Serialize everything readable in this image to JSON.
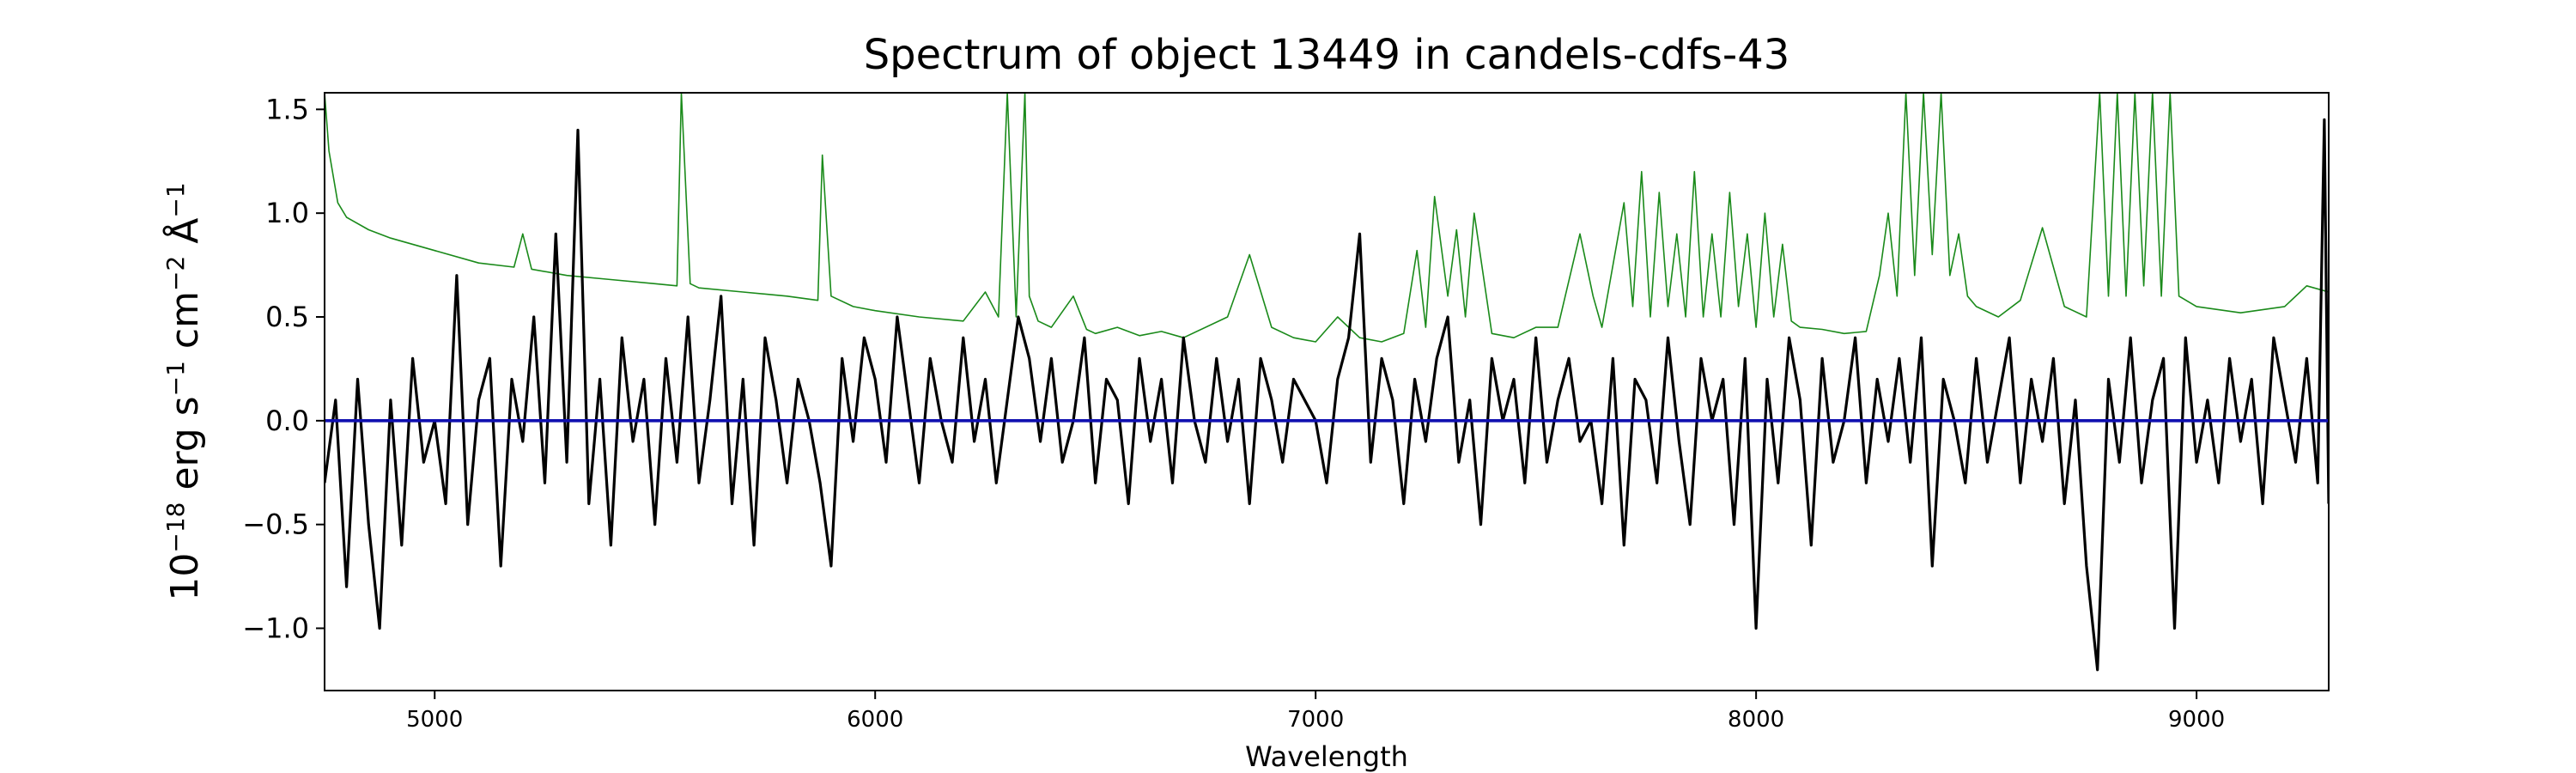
{
  "chart_data": {
    "type": "line",
    "title": "Spectrum of object 13449 in candels-cdfs-43",
    "xlabel": "Wavelength",
    "ylabel": "10^-18 erg s^-1 cm^-2 Å^-1",
    "xlim": [
      4750,
      9300
    ],
    "ylim": [
      -1.3,
      1.58
    ],
    "xticks": [
      5000,
      6000,
      7000,
      8000,
      9000
    ],
    "yticks": [
      -1.0,
      -0.5,
      0.0,
      0.5,
      1.0,
      1.5
    ],
    "grid": false,
    "series": [
      {
        "role": "flux",
        "color": "#000000",
        "x": [
          4750,
          4775,
          4800,
          4825,
          4850,
          4875,
          4900,
          4925,
          4950,
          4975,
          5000,
          5025,
          5050,
          5075,
          5100,
          5125,
          5150,
          5175,
          5200,
          5225,
          5250,
          5275,
          5300,
          5325,
          5350,
          5375,
          5400,
          5425,
          5450,
          5475,
          5500,
          5525,
          5550,
          5575,
          5600,
          5625,
          5650,
          5675,
          5700,
          5725,
          5750,
          5775,
          5800,
          5825,
          5850,
          5875,
          5900,
          5925,
          5950,
          5975,
          6000,
          6025,
          6050,
          6075,
          6100,
          6125,
          6150,
          6175,
          6200,
          6225,
          6250,
          6275,
          6300,
          6325,
          6350,
          6375,
          6400,
          6425,
          6450,
          6475,
          6500,
          6525,
          6550,
          6575,
          6600,
          6625,
          6650,
          6675,
          6700,
          6725,
          6750,
          6775,
          6800,
          6825,
          6850,
          6875,
          6900,
          6925,
          6950,
          6975,
          7000,
          7025,
          7050,
          7075,
          7100,
          7125,
          7150,
          7175,
          7200,
          7225,
          7250,
          7275,
          7300,
          7325,
          7350,
          7375,
          7400,
          7425,
          7450,
          7475,
          7500,
          7525,
          7550,
          7575,
          7600,
          7625,
          7650,
          7675,
          7700,
          7725,
          7750,
          7775,
          7800,
          7825,
          7850,
          7875,
          7900,
          7925,
          7950,
          7975,
          8000,
          8025,
          8050,
          8075,
          8100,
          8125,
          8150,
          8175,
          8200,
          8225,
          8250,
          8275,
          8300,
          8325,
          8350,
          8375,
          8400,
          8425,
          8450,
          8475,
          8500,
          8525,
          8550,
          8575,
          8600,
          8625,
          8650,
          8675,
          8700,
          8725,
          8750,
          8775,
          8800,
          8825,
          8850,
          8875,
          8900,
          8925,
          8950,
          8975,
          9000,
          9025,
          9050,
          9075,
          9100,
          9125,
          9150,
          9175,
          9200,
          9225,
          9250,
          9275,
          9290,
          9300
        ],
        "y": [
          -0.3,
          0.1,
          -0.8,
          0.2,
          -0.5,
          -1.0,
          0.1,
          -0.6,
          0.3,
          -0.2,
          0.0,
          -0.4,
          0.7,
          -0.5,
          0.1,
          0.3,
          -0.7,
          0.2,
          -0.1,
          0.5,
          -0.3,
          0.9,
          -0.2,
          1.4,
          -0.4,
          0.2,
          -0.6,
          0.4,
          -0.1,
          0.2,
          -0.5,
          0.3,
          -0.2,
          0.5,
          -0.3,
          0.1,
          0.6,
          -0.4,
          0.2,
          -0.6,
          0.4,
          0.1,
          -0.3,
          0.2,
          0.0,
          -0.3,
          -0.7,
          0.3,
          -0.1,
          0.4,
          0.2,
          -0.2,
          0.5,
          0.1,
          -0.3,
          0.3,
          0.0,
          -0.2,
          0.4,
          -0.1,
          0.2,
          -0.3,
          0.1,
          0.5,
          0.3,
          -0.1,
          0.3,
          -0.2,
          0.0,
          0.4,
          -0.3,
          0.2,
          0.1,
          -0.4,
          0.3,
          -0.1,
          0.2,
          -0.3,
          0.4,
          0.0,
          -0.2,
          0.3,
          -0.1,
          0.2,
          -0.4,
          0.3,
          0.1,
          -0.2,
          0.2,
          0.1,
          0.0,
          -0.3,
          0.2,
          0.4,
          0.9,
          -0.2,
          0.3,
          0.1,
          -0.4,
          0.2,
          -0.1,
          0.3,
          0.5,
          -0.2,
          0.1,
          -0.5,
          0.3,
          0.0,
          0.2,
          -0.3,
          0.4,
          -0.2,
          0.1,
          0.3,
          -0.1,
          0.0,
          -0.4,
          0.3,
          -0.6,
          0.2,
          0.1,
          -0.3,
          0.4,
          -0.1,
          -0.5,
          0.3,
          0.0,
          0.2,
          -0.5,
          0.3,
          -1.0,
          0.2,
          -0.3,
          0.4,
          0.1,
          -0.6,
          0.3,
          -0.2,
          0.0,
          0.4,
          -0.3,
          0.2,
          -0.1,
          0.3,
          -0.2,
          0.4,
          -0.7,
          0.2,
          0.0,
          -0.3,
          0.3,
          -0.2,
          0.1,
          0.4,
          -0.3,
          0.2,
          -0.1,
          0.3,
          -0.4,
          0.1,
          -0.7,
          -1.2,
          0.2,
          -0.2,
          0.4,
          -0.3,
          0.1,
          0.3,
          -1.0,
          0.4,
          -0.2,
          0.1,
          -0.3,
          0.3,
          -0.1,
          0.2,
          -0.4,
          0.4,
          0.1,
          -0.2,
          0.3,
          -0.3,
          1.45,
          -0.4
        ]
      },
      {
        "role": "error",
        "color": "#1a8a1a",
        "x": [
          4750,
          4760,
          4780,
          4800,
          4850,
          4900,
          5000,
          5100,
          5180,
          5200,
          5220,
          5300,
          5400,
          5500,
          5550,
          5560,
          5580,
          5600,
          5700,
          5800,
          5870,
          5880,
          5900,
          5950,
          6000,
          6100,
          6200,
          6250,
          6280,
          6300,
          6320,
          6340,
          6350,
          6370,
          6400,
          6450,
          6480,
          6500,
          6550,
          6600,
          6650,
          6700,
          6800,
          6850,
          6900,
          6950,
          7000,
          7050,
          7100,
          7150,
          7200,
          7230,
          7250,
          7270,
          7300,
          7320,
          7340,
          7360,
          7400,
          7450,
          7500,
          7550,
          7600,
          7630,
          7650,
          7700,
          7720,
          7740,
          7760,
          7780,
          7800,
          7820,
          7840,
          7860,
          7880,
          7900,
          7920,
          7940,
          7960,
          7980,
          8000,
          8020,
          8040,
          8060,
          8080,
          8100,
          8150,
          8200,
          8250,
          8280,
          8300,
          8320,
          8340,
          8360,
          8380,
          8400,
          8420,
          8440,
          8460,
          8480,
          8500,
          8550,
          8600,
          8650,
          8700,
          8750,
          8780,
          8800,
          8820,
          8840,
          8860,
          8880,
          8900,
          8920,
          8940,
          8960,
          9000,
          9100,
          9200,
          9250,
          9300
        ],
        "y": [
          1.58,
          1.3,
          1.05,
          0.98,
          0.92,
          0.88,
          0.82,
          0.76,
          0.74,
          0.9,
          0.73,
          0.7,
          0.68,
          0.66,
          0.65,
          1.58,
          0.66,
          0.64,
          0.62,
          0.6,
          0.58,
          1.28,
          0.6,
          0.55,
          0.53,
          0.5,
          0.48,
          0.62,
          0.5,
          1.58,
          0.5,
          1.58,
          0.6,
          0.48,
          0.45,
          0.6,
          0.44,
          0.42,
          0.45,
          0.41,
          0.43,
          0.4,
          0.5,
          0.8,
          0.45,
          0.4,
          0.38,
          0.5,
          0.4,
          0.38,
          0.42,
          0.82,
          0.45,
          1.08,
          0.6,
          0.92,
          0.5,
          1.0,
          0.42,
          0.4,
          0.45,
          0.45,
          0.9,
          0.6,
          0.45,
          1.05,
          0.55,
          1.2,
          0.5,
          1.1,
          0.55,
          0.9,
          0.5,
          1.2,
          0.5,
          0.9,
          0.5,
          1.1,
          0.55,
          0.9,
          0.45,
          1.0,
          0.5,
          0.85,
          0.48,
          0.45,
          0.44,
          0.42,
          0.43,
          0.7,
          1.0,
          0.6,
          1.58,
          0.7,
          1.58,
          0.8,
          1.58,
          0.7,
          0.9,
          0.6,
          0.55,
          0.5,
          0.58,
          0.93,
          0.55,
          0.5,
          1.58,
          0.6,
          1.58,
          0.6,
          1.58,
          0.65,
          1.58,
          0.6,
          1.58,
          0.6,
          0.55,
          0.52,
          0.55,
          0.65,
          0.62
        ]
      },
      {
        "role": "model",
        "color": "#1010b0",
        "x": [
          4750,
          9300
        ],
        "y": [
          0.0,
          0.0
        ]
      }
    ]
  }
}
